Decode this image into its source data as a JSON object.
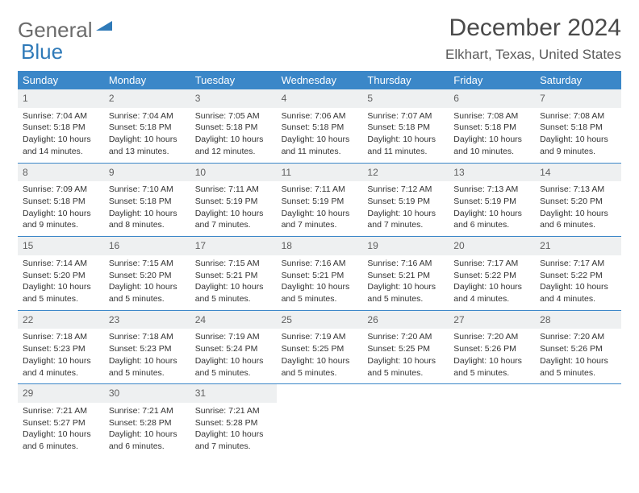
{
  "logo": {
    "part1": "General",
    "part2": "Blue"
  },
  "title": "December 2024",
  "location": "Elkhart, Texas, United States",
  "header_bg": "#3b87c8",
  "day_labels": [
    "Sunday",
    "Monday",
    "Tuesday",
    "Wednesday",
    "Thursday",
    "Friday",
    "Saturday"
  ],
  "weeks": [
    [
      {
        "n": "1",
        "sunrise": "Sunrise: 7:04 AM",
        "sunset": "Sunset: 5:18 PM",
        "daylight": "Daylight: 10 hours and 14 minutes."
      },
      {
        "n": "2",
        "sunrise": "Sunrise: 7:04 AM",
        "sunset": "Sunset: 5:18 PM",
        "daylight": "Daylight: 10 hours and 13 minutes."
      },
      {
        "n": "3",
        "sunrise": "Sunrise: 7:05 AM",
        "sunset": "Sunset: 5:18 PM",
        "daylight": "Daylight: 10 hours and 12 minutes."
      },
      {
        "n": "4",
        "sunrise": "Sunrise: 7:06 AM",
        "sunset": "Sunset: 5:18 PM",
        "daylight": "Daylight: 10 hours and 11 minutes."
      },
      {
        "n": "5",
        "sunrise": "Sunrise: 7:07 AM",
        "sunset": "Sunset: 5:18 PM",
        "daylight": "Daylight: 10 hours and 11 minutes."
      },
      {
        "n": "6",
        "sunrise": "Sunrise: 7:08 AM",
        "sunset": "Sunset: 5:18 PM",
        "daylight": "Daylight: 10 hours and 10 minutes."
      },
      {
        "n": "7",
        "sunrise": "Sunrise: 7:08 AM",
        "sunset": "Sunset: 5:18 PM",
        "daylight": "Daylight: 10 hours and 9 minutes."
      }
    ],
    [
      {
        "n": "8",
        "sunrise": "Sunrise: 7:09 AM",
        "sunset": "Sunset: 5:18 PM",
        "daylight": "Daylight: 10 hours and 9 minutes."
      },
      {
        "n": "9",
        "sunrise": "Sunrise: 7:10 AM",
        "sunset": "Sunset: 5:18 PM",
        "daylight": "Daylight: 10 hours and 8 minutes."
      },
      {
        "n": "10",
        "sunrise": "Sunrise: 7:11 AM",
        "sunset": "Sunset: 5:19 PM",
        "daylight": "Daylight: 10 hours and 7 minutes."
      },
      {
        "n": "11",
        "sunrise": "Sunrise: 7:11 AM",
        "sunset": "Sunset: 5:19 PM",
        "daylight": "Daylight: 10 hours and 7 minutes."
      },
      {
        "n": "12",
        "sunrise": "Sunrise: 7:12 AM",
        "sunset": "Sunset: 5:19 PM",
        "daylight": "Daylight: 10 hours and 7 minutes."
      },
      {
        "n": "13",
        "sunrise": "Sunrise: 7:13 AM",
        "sunset": "Sunset: 5:19 PM",
        "daylight": "Daylight: 10 hours and 6 minutes."
      },
      {
        "n": "14",
        "sunrise": "Sunrise: 7:13 AM",
        "sunset": "Sunset: 5:20 PM",
        "daylight": "Daylight: 10 hours and 6 minutes."
      }
    ],
    [
      {
        "n": "15",
        "sunrise": "Sunrise: 7:14 AM",
        "sunset": "Sunset: 5:20 PM",
        "daylight": "Daylight: 10 hours and 5 minutes."
      },
      {
        "n": "16",
        "sunrise": "Sunrise: 7:15 AM",
        "sunset": "Sunset: 5:20 PM",
        "daylight": "Daylight: 10 hours and 5 minutes."
      },
      {
        "n": "17",
        "sunrise": "Sunrise: 7:15 AM",
        "sunset": "Sunset: 5:21 PM",
        "daylight": "Daylight: 10 hours and 5 minutes."
      },
      {
        "n": "18",
        "sunrise": "Sunrise: 7:16 AM",
        "sunset": "Sunset: 5:21 PM",
        "daylight": "Daylight: 10 hours and 5 minutes."
      },
      {
        "n": "19",
        "sunrise": "Sunrise: 7:16 AM",
        "sunset": "Sunset: 5:21 PM",
        "daylight": "Daylight: 10 hours and 5 minutes."
      },
      {
        "n": "20",
        "sunrise": "Sunrise: 7:17 AM",
        "sunset": "Sunset: 5:22 PM",
        "daylight": "Daylight: 10 hours and 4 minutes."
      },
      {
        "n": "21",
        "sunrise": "Sunrise: 7:17 AM",
        "sunset": "Sunset: 5:22 PM",
        "daylight": "Daylight: 10 hours and 4 minutes."
      }
    ],
    [
      {
        "n": "22",
        "sunrise": "Sunrise: 7:18 AM",
        "sunset": "Sunset: 5:23 PM",
        "daylight": "Daylight: 10 hours and 4 minutes."
      },
      {
        "n": "23",
        "sunrise": "Sunrise: 7:18 AM",
        "sunset": "Sunset: 5:23 PM",
        "daylight": "Daylight: 10 hours and 5 minutes."
      },
      {
        "n": "24",
        "sunrise": "Sunrise: 7:19 AM",
        "sunset": "Sunset: 5:24 PM",
        "daylight": "Daylight: 10 hours and 5 minutes."
      },
      {
        "n": "25",
        "sunrise": "Sunrise: 7:19 AM",
        "sunset": "Sunset: 5:25 PM",
        "daylight": "Daylight: 10 hours and 5 minutes."
      },
      {
        "n": "26",
        "sunrise": "Sunrise: 7:20 AM",
        "sunset": "Sunset: 5:25 PM",
        "daylight": "Daylight: 10 hours and 5 minutes."
      },
      {
        "n": "27",
        "sunrise": "Sunrise: 7:20 AM",
        "sunset": "Sunset: 5:26 PM",
        "daylight": "Daylight: 10 hours and 5 minutes."
      },
      {
        "n": "28",
        "sunrise": "Sunrise: 7:20 AM",
        "sunset": "Sunset: 5:26 PM",
        "daylight": "Daylight: 10 hours and 5 minutes."
      }
    ],
    [
      {
        "n": "29",
        "sunrise": "Sunrise: 7:21 AM",
        "sunset": "Sunset: 5:27 PM",
        "daylight": "Daylight: 10 hours and 6 minutes."
      },
      {
        "n": "30",
        "sunrise": "Sunrise: 7:21 AM",
        "sunset": "Sunset: 5:28 PM",
        "daylight": "Daylight: 10 hours and 6 minutes."
      },
      {
        "n": "31",
        "sunrise": "Sunrise: 7:21 AM",
        "sunset": "Sunset: 5:28 PM",
        "daylight": "Daylight: 10 hours and 7 minutes."
      },
      null,
      null,
      null,
      null
    ]
  ]
}
